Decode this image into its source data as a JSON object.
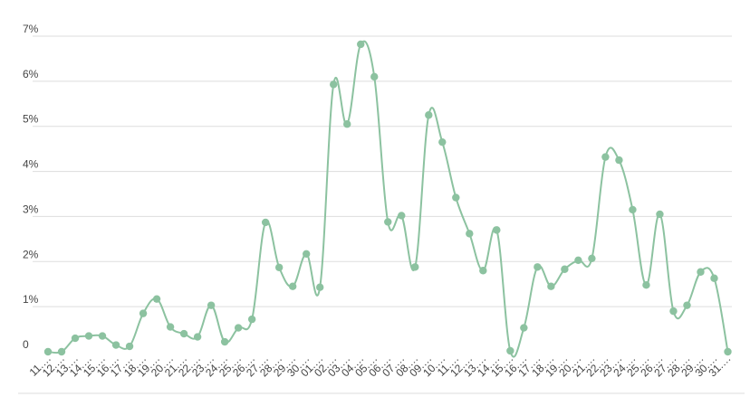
{
  "chart_data": {
    "type": "line",
    "title": "",
    "xlabel": "",
    "ylabel": "",
    "ylim": [
      0,
      7
    ],
    "ytick_labels": [
      "0",
      "1%",
      "2%",
      "3%",
      "4%",
      "5%",
      "6%",
      "7%"
    ],
    "grid": true,
    "colors": {
      "series": "#8cc2a0",
      "grid": "#dddddd",
      "axis": "#bbbbbb"
    },
    "categories": [
      "11.…",
      "12.…",
      "13.…",
      "14.…",
      "15.…",
      "16.…",
      "17.…",
      "18.…",
      "19.…",
      "20.…",
      "21.…",
      "22.…",
      "23.…",
      "24.…",
      "25.…",
      "26.…",
      "27.…",
      "28.…",
      "29.…",
      "30.…",
      "01.…",
      "02.…",
      "03.…",
      "04.…",
      "05.…",
      "06.…",
      "07.…",
      "08.…",
      "09.…",
      "10.…",
      "11.…",
      "12.…",
      "13.…",
      "14.…",
      "15.…",
      "16.…",
      "17.…",
      "18.…",
      "19.…",
      "20.…",
      "21.…",
      "22.…",
      "23.…",
      "24.…",
      "25.…",
      "26.…",
      "27.…",
      "28.…",
      "29.…",
      "30.…",
      "31.…"
    ],
    "series": [
      {
        "values": [
          0.0,
          0.0,
          0.3,
          0.35,
          0.35,
          0.15,
          0.12,
          0.85,
          1.17,
          0.55,
          0.4,
          0.33,
          1.03,
          0.22,
          0.53,
          0.72,
          2.87,
          1.87,
          1.45,
          2.17,
          1.43,
          5.93,
          5.05,
          6.82,
          6.1,
          2.88,
          3.02,
          1.88,
          5.25,
          4.65,
          3.42,
          2.62,
          1.8,
          2.7,
          0.02,
          0.53,
          1.88,
          1.45,
          1.83,
          2.03,
          2.07,
          4.32,
          4.25,
          3.15,
          1.48,
          3.05,
          0.9,
          1.03,
          1.77,
          1.63,
          0.0
        ]
      }
    ]
  }
}
